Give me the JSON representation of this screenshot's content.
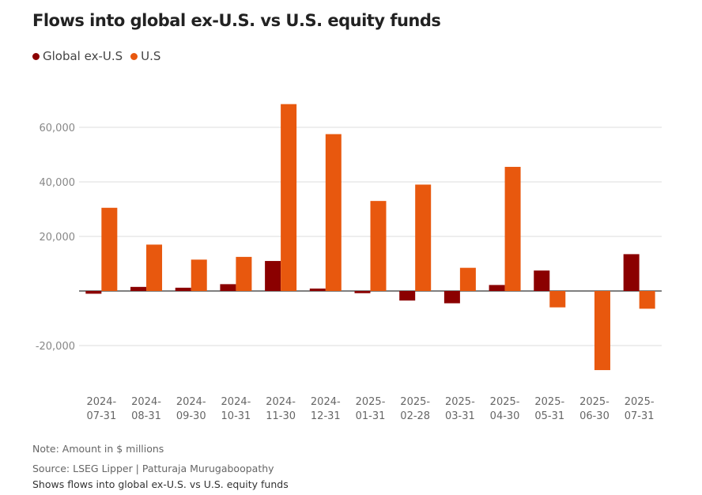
{
  "title": "Flows into global ex-U.S. vs U.S. equity funds",
  "legend": [
    {
      "label": "Global ex-U.S",
      "color": "#8B0000"
    },
    {
      "label": "U.S",
      "color": "#E8580E"
    }
  ],
  "chart_data": {
    "type": "bar",
    "categories": [
      [
        "2024-",
        "07-31"
      ],
      [
        "2024-",
        "08-31"
      ],
      [
        "2024-",
        "09-30"
      ],
      [
        "2024-",
        "10-31"
      ],
      [
        "2024-",
        "11-30"
      ],
      [
        "2024-",
        "12-31"
      ],
      [
        "2025-",
        "01-31"
      ],
      [
        "2025-",
        "02-28"
      ],
      [
        "2025-",
        "03-31"
      ],
      [
        "2025-",
        "04-30"
      ],
      [
        "2025-",
        "05-31"
      ],
      [
        "2025-",
        "06-30"
      ],
      [
        "2025-",
        "07-31"
      ]
    ],
    "series": [
      {
        "name": "Global ex-U.S",
        "color": "#8B0000",
        "values": [
          -1000,
          1500,
          1200,
          2500,
          11000,
          900,
          -800,
          -3500,
          -4500,
          2200,
          7500,
          0,
          13500
        ]
      },
      {
        "name": "U.S",
        "color": "#E8580E",
        "values": [
          30500,
          17000,
          11500,
          12500,
          68500,
          57500,
          33000,
          39000,
          8500,
          45500,
          -6000,
          -29000,
          -6500
        ]
      }
    ],
    "yticks": [
      60000,
      40000,
      20000,
      0,
      -20000
    ],
    "ytick_labels": [
      "60,000",
      "40,000",
      "20,000",
      "",
      "-20,000"
    ],
    "ylim": [
      -30000,
      70000
    ],
    "grid": true
  },
  "footer": {
    "note": "Note: Amount in $ millions",
    "source": "Source: LSEG Lipper  | Patturaja Murugaboopathy",
    "caption": "Shows flows into global ex-U.S. vs U.S. equity funds"
  }
}
